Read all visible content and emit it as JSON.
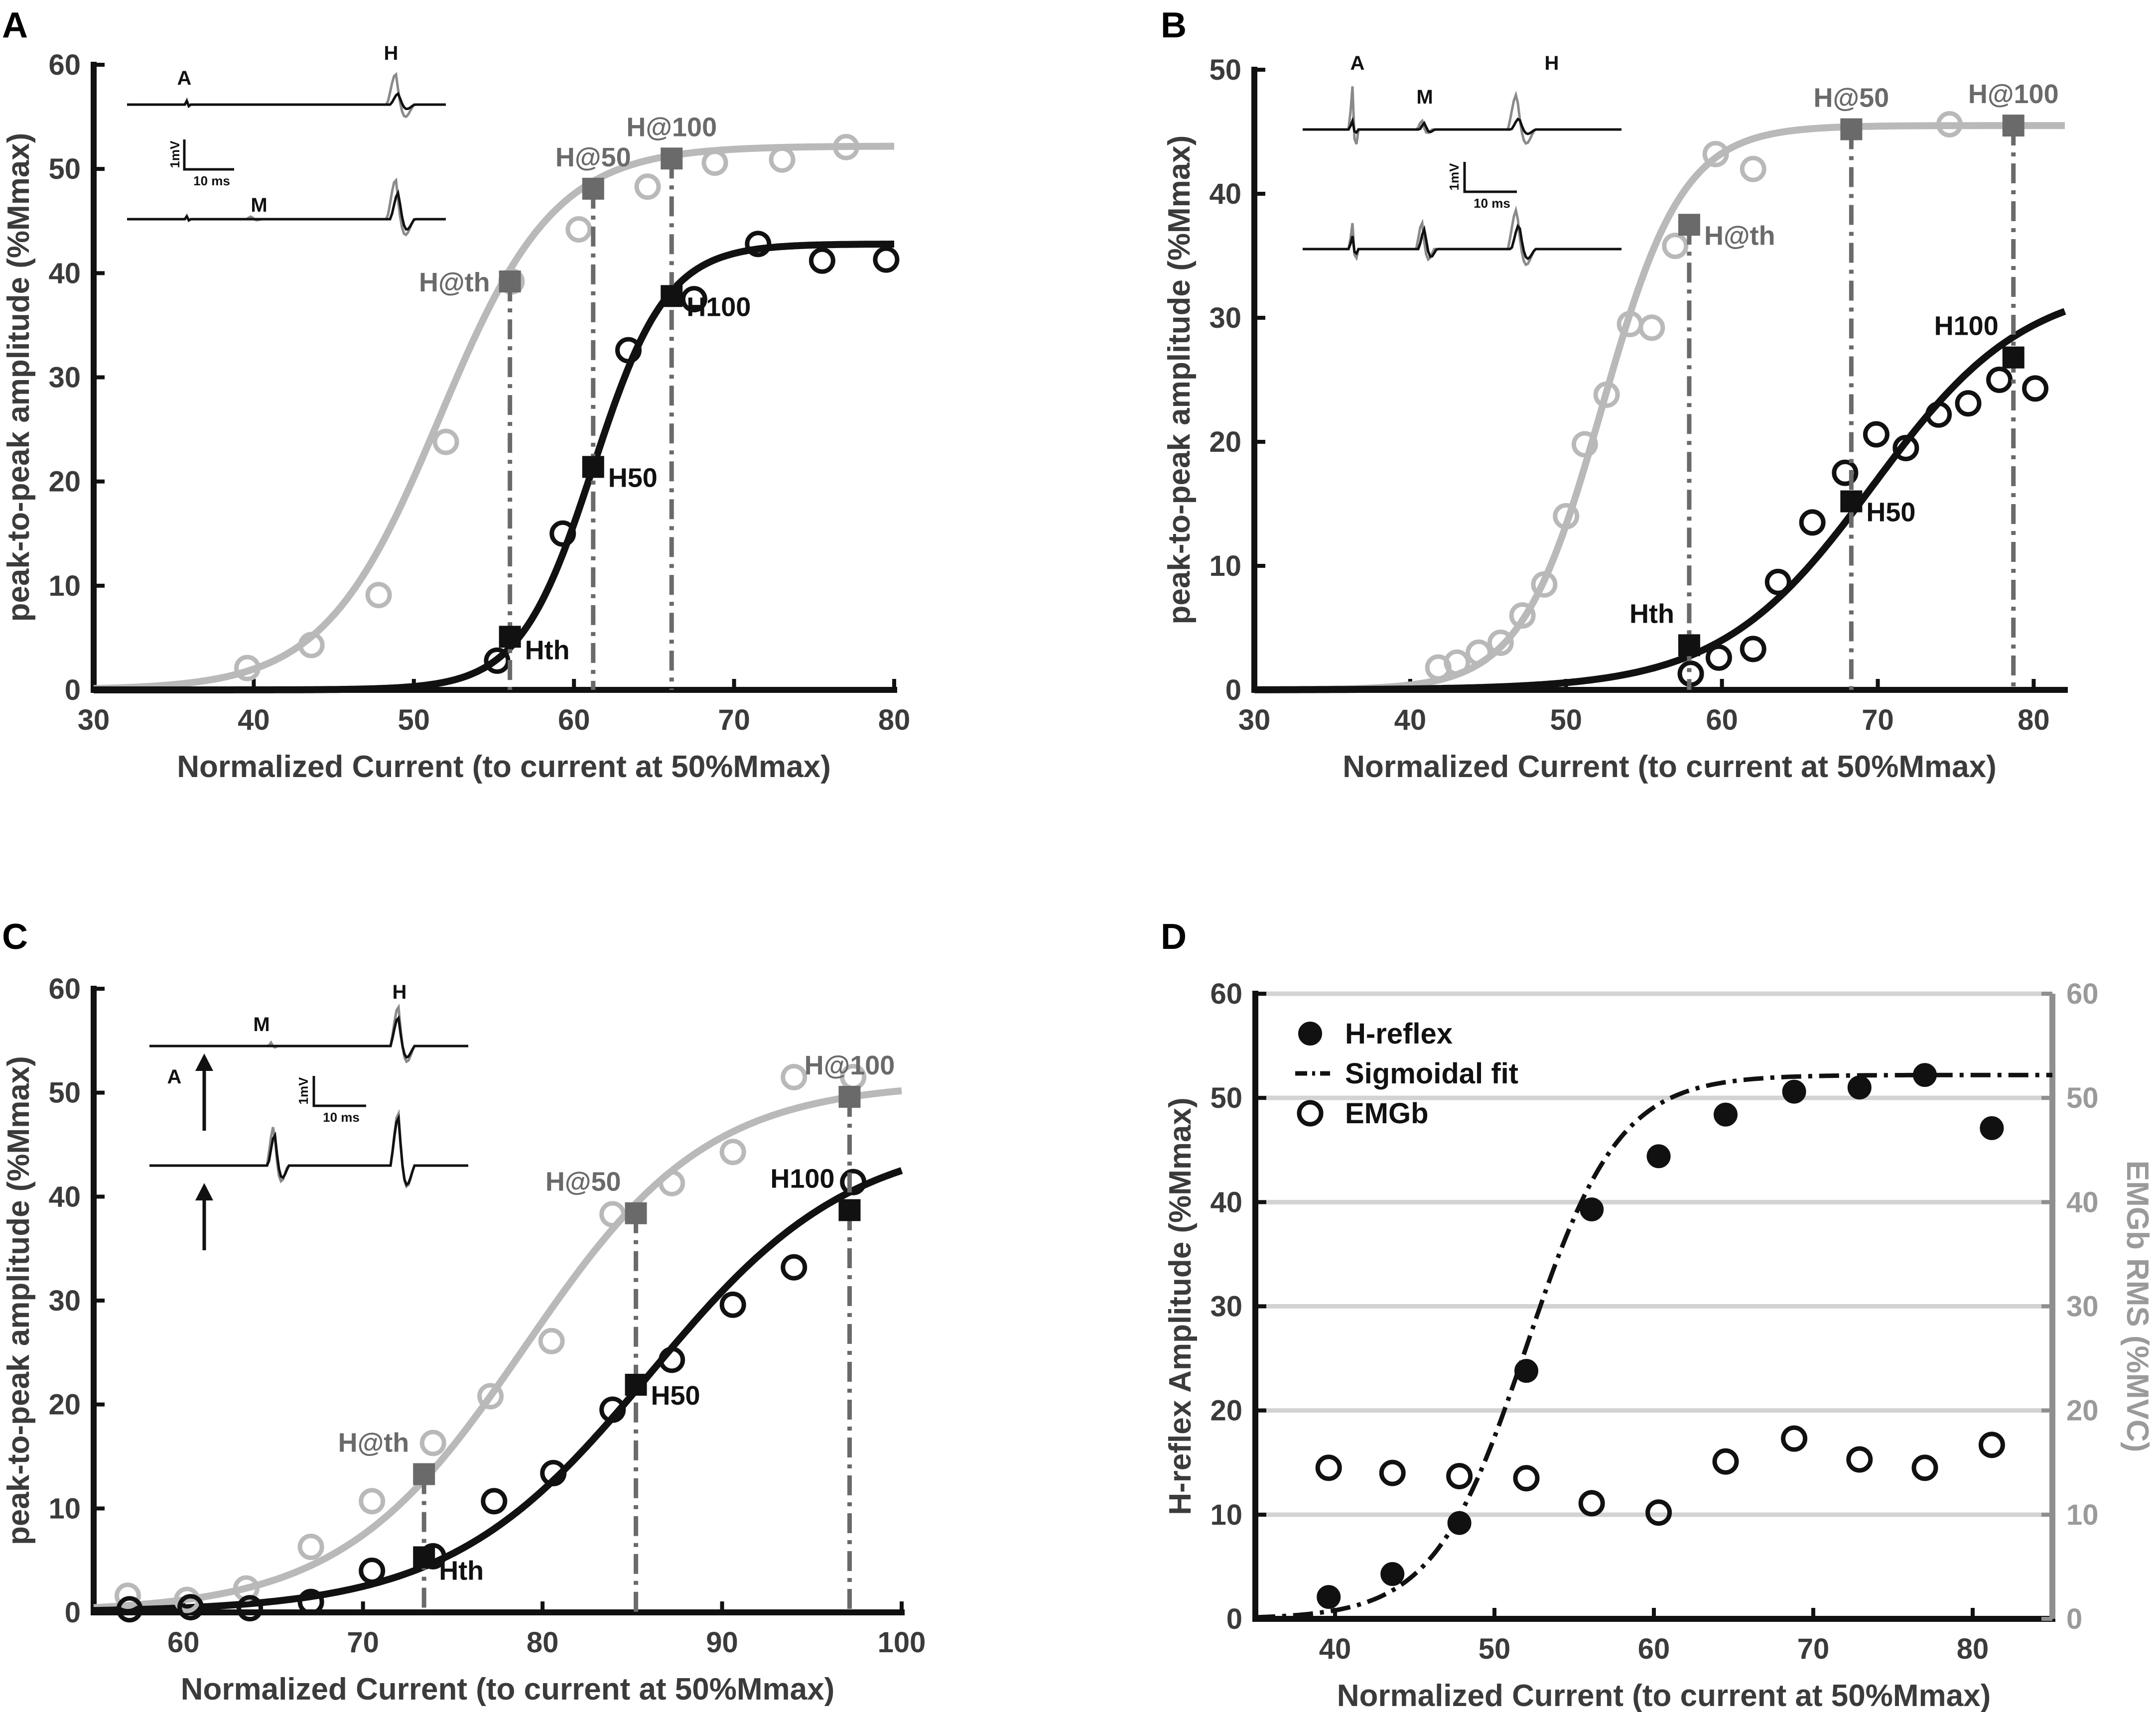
{
  "figure": {
    "panels": [
      "A",
      "B",
      "C",
      "D"
    ],
    "colors": {
      "black": "#111111",
      "gray": "#b9b9b9",
      "dark_gray": "#6a6a6a",
      "grid": "#d3d3d3"
    }
  },
  "chart_data": [
    {
      "panel": "A",
      "type": "line",
      "title": "",
      "xlabel": "Normalized Current (to current at 50%Mmax)",
      "ylabel": "peak-to-peak amplitude (%Mmax)",
      "xlim": [
        30,
        80
      ],
      "ylim": [
        0,
        60
      ],
      "xticks": [
        30,
        40,
        50,
        60,
        70,
        80
      ],
      "yticks": [
        0,
        10,
        20,
        30,
        40,
        50,
        60
      ],
      "series": [
        {
          "name": "gray",
          "color": "#b9b9b9",
          "fit": {
            "max": 52.2,
            "mid": 51.6,
            "slope": 3.6
          },
          "x": [
            39.6,
            43.6,
            47.8,
            52.0,
            56.1,
            60.3,
            64.6,
            68.8,
            73.0,
            77.0
          ],
          "y": [
            2.1,
            4.3,
            9.1,
            23.8,
            39.2,
            44.2,
            48.3,
            50.6,
            50.9,
            52.1
          ]
        },
        {
          "name": "black",
          "color": "#111111",
          "fit": {
            "max": 42.8,
            "mid": 61.2,
            "slope": 2.3
          },
          "x": [
            55.2,
            59.3,
            63.4,
            67.5,
            71.5,
            75.5,
            79.5
          ],
          "y": [
            2.8,
            15.0,
            32.6,
            37.5,
            42.8,
            41.2,
            41.3
          ]
        }
      ],
      "markers": [
        {
          "label": "H@th",
          "x": 56.0,
          "y": 39.2,
          "color": "gray",
          "pos": "left",
          "line": true
        },
        {
          "label": "H@50",
          "x": 61.2,
          "y": 48.1,
          "color": "gray",
          "pos": "above",
          "line": true
        },
        {
          "label": "H@100",
          "x": 66.1,
          "y": 51.0,
          "color": "gray",
          "pos": "above",
          "line": true
        },
        {
          "label": "Hth",
          "x": 56.0,
          "y": 5.1,
          "color": "black",
          "pos": "below-right",
          "line": false
        },
        {
          "label": "H50",
          "x": 61.2,
          "y": 21.4,
          "color": "black",
          "pos": "right",
          "line": false
        },
        {
          "label": "H100",
          "x": 66.1,
          "y": 37.8,
          "color": "black",
          "pos": "right",
          "line": false
        }
      ],
      "inset": {
        "labels": [
          "A",
          "H",
          "M"
        ],
        "scale_v": "1mV",
        "scale_h": "10 ms"
      }
    },
    {
      "panel": "B",
      "type": "line",
      "title": "",
      "xlabel": "Normalized Current (to current at 50%Mmax)",
      "ylabel": "peak-to-peak amplitude (%Mmax)",
      "xlim": [
        30,
        82
      ],
      "ylim": [
        0,
        50
      ],
      "xticks": [
        30,
        40,
        50,
        60,
        70,
        80
      ],
      "yticks": [
        0,
        10,
        20,
        30,
        40,
        50
      ],
      "series": [
        {
          "name": "gray",
          "color": "#b9b9b9",
          "fit": {
            "max": 45.5,
            "mid": 52.3,
            "slope": 2.6
          },
          "x": [
            41.8,
            43.0,
            44.4,
            45.8,
            47.2,
            48.6,
            50.0,
            51.2,
            52.6,
            54.1,
            55.5,
            57.0,
            59.6,
            62.0,
            74.6
          ],
          "y": [
            1.8,
            2.2,
            3.0,
            3.8,
            6.0,
            8.5,
            14.0,
            19.8,
            23.8,
            29.5,
            29.2,
            35.8,
            43.2,
            42.0,
            45.6
          ]
        },
        {
          "name": "black",
          "color": "#111111",
          "fit": {
            "max": 33.0,
            "mid": 69.7,
            "slope": 4.9
          },
          "x": [
            58.0,
            59.8,
            62.0,
            63.6,
            65.8,
            67.9,
            69.9,
            71.8,
            73.9,
            75.8,
            77.8,
            80.1
          ],
          "y": [
            1.3,
            2.6,
            3.3,
            8.7,
            13.5,
            17.5,
            20.6,
            19.5,
            22.2,
            23.1,
            25.0,
            24.3
          ]
        }
      ],
      "markers": [
        {
          "label": "H@th",
          "x": 57.9,
          "y": 37.5,
          "color": "gray",
          "pos": "right",
          "line": true
        },
        {
          "label": "H@50",
          "x": 68.3,
          "y": 45.2,
          "color": "gray",
          "pos": "above",
          "line": true
        },
        {
          "label": "H@100",
          "x": 78.7,
          "y": 45.5,
          "color": "gray",
          "pos": "above",
          "line": true
        },
        {
          "label": "Hth",
          "x": 57.9,
          "y": 3.6,
          "color": "black",
          "pos": "above-left",
          "line": false
        },
        {
          "label": "H50",
          "x": 68.3,
          "y": 15.2,
          "color": "black",
          "pos": "right",
          "line": false
        },
        {
          "label": "H100",
          "x": 78.7,
          "y": 26.8,
          "color": "black",
          "pos": "above-left",
          "line": false
        }
      ],
      "inset": {
        "labels": [
          "A",
          "M",
          "H"
        ],
        "scale_v": "1mV",
        "scale_h": "10 ms"
      }
    },
    {
      "panel": "C",
      "type": "line",
      "title": "",
      "xlabel": "Normalized Current (to current at 50%Mmax)",
      "ylabel": "peak-to-peak amplitude (%Mmax)",
      "xlim": [
        55,
        100
      ],
      "ylim": [
        0,
        60
      ],
      "xticks": [
        60,
        70,
        80,
        90,
        100
      ],
      "yticks": [
        0,
        10,
        20,
        30,
        40,
        50,
        60
      ],
      "series": [
        {
          "name": "gray",
          "color": "#b9b9b9",
          "fit": {
            "max": 51.0,
            "mid": 79.0,
            "slope": 5.1
          },
          "x": [
            56.9,
            60.2,
            63.5,
            67.1,
            70.5,
            73.9,
            77.1,
            80.5,
            83.9,
            87.2,
            90.6,
            94.0,
            97.3
          ],
          "y": [
            1.6,
            1.2,
            2.3,
            6.3,
            10.7,
            16.3,
            20.8,
            26.1,
            38.3,
            41.3,
            44.3,
            51.5,
            51.5
          ]
        },
        {
          "name": "black",
          "color": "#111111",
          "fit": {
            "max": 46.0,
            "mid": 86.0,
            "slope": 5.6
          },
          "x": [
            57.0,
            60.4,
            63.7,
            67.1,
            70.5,
            73.9,
            77.3,
            80.6,
            83.9,
            87.2,
            90.6,
            94.0,
            97.3
          ],
          "y": [
            0.3,
            0.5,
            0.4,
            1.0,
            4.0,
            5.4,
            10.7,
            13.4,
            19.5,
            24.3,
            29.6,
            33.2,
            41.4
          ]
        }
      ],
      "markers": [
        {
          "label": "H@th",
          "x": 73.4,
          "y": 13.3,
          "color": "gray",
          "pos": "above-left",
          "line": true
        },
        {
          "label": "H@50",
          "x": 85.2,
          "y": 38.4,
          "color": "gray",
          "pos": "above-left",
          "line": true
        },
        {
          "label": "H@100",
          "x": 97.1,
          "y": 49.6,
          "color": "gray",
          "pos": "above",
          "line": true
        },
        {
          "label": "Hth",
          "x": 73.4,
          "y": 5.3,
          "color": "black",
          "pos": "below-right",
          "line": false
        },
        {
          "label": "H50",
          "x": 85.2,
          "y": 21.9,
          "color": "black",
          "pos": "right",
          "line": false
        },
        {
          "label": "H100",
          "x": 97.1,
          "y": 38.7,
          "color": "black",
          "pos": "above-left",
          "line": false
        }
      ],
      "inset": {
        "labels": [
          "M",
          "H",
          "A"
        ],
        "scale_v": "1mV",
        "scale_h": "10 ms"
      }
    },
    {
      "panel": "D",
      "type": "scatter",
      "title": "",
      "xlabel": "Normalized Current (to current at 50%Mmax)",
      "ylabel": "H-reflex Amplitude (%Mmax)",
      "y2label": "EMGb RMS (%MVC)",
      "xlim": [
        35,
        85
      ],
      "ylim": [
        0,
        60
      ],
      "y2lim": [
        0,
        60
      ],
      "xticks": [
        40,
        50,
        60,
        70,
        80
      ],
      "yticks": [
        0,
        10,
        20,
        30,
        40,
        50,
        60
      ],
      "grid": true,
      "legend": [
        "H-reflex",
        "Sigmoidal fit",
        "EMGb"
      ],
      "legend_position": "top-left",
      "series": [
        {
          "name": "H-reflex",
          "x": [
            39.6,
            43.6,
            47.8,
            52.0,
            56.1,
            60.3,
            64.5,
            68.8,
            72.9,
            77.0,
            81.2
          ],
          "y": [
            2.1,
            4.3,
            9.2,
            23.8,
            39.3,
            44.4,
            48.4,
            50.6,
            51.0,
            52.2,
            47.1
          ]
        },
        {
          "name": "Sigmoidal fit",
          "fit": {
            "max": 52.2,
            "mid": 52.0,
            "slope": 2.9
          }
        },
        {
          "name": "EMGb",
          "x": [
            39.6,
            43.6,
            47.8,
            52.0,
            56.1,
            60.3,
            64.5,
            68.8,
            72.9,
            77.0,
            81.2
          ],
          "y": [
            14.5,
            14.0,
            13.7,
            13.5,
            11.1,
            10.2,
            15.1,
            17.3,
            15.3,
            14.5,
            16.7
          ]
        }
      ]
    }
  ]
}
